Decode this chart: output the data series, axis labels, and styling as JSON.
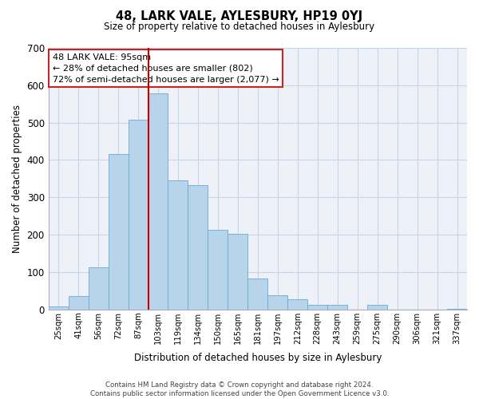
{
  "title": "48, LARK VALE, AYLESBURY, HP19 0YJ",
  "subtitle": "Size of property relative to detached houses in Aylesbury",
  "xlabel": "Distribution of detached houses by size in Aylesbury",
  "ylabel": "Number of detached properties",
  "bar_labels": [
    "25sqm",
    "41sqm",
    "56sqm",
    "72sqm",
    "87sqm",
    "103sqm",
    "119sqm",
    "134sqm",
    "150sqm",
    "165sqm",
    "181sqm",
    "197sqm",
    "212sqm",
    "228sqm",
    "243sqm",
    "259sqm",
    "275sqm",
    "290sqm",
    "306sqm",
    "321sqm",
    "337sqm"
  ],
  "bar_values": [
    8,
    35,
    112,
    415,
    507,
    578,
    345,
    332,
    213,
    202,
    83,
    37,
    27,
    12,
    13,
    0,
    13,
    0,
    0,
    0,
    2
  ],
  "bar_color": "#b8d4ea",
  "bar_edge_color": "#6aaad4",
  "marker_line_color": "#cc0000",
  "marker_bar_index": 5,
  "annotation_line1": "48 LARK VALE: 95sqm",
  "annotation_line2": "← 28% of detached houses are smaller (802)",
  "annotation_line3": "72% of semi-detached houses are larger (2,077) →",
  "annotation_box_color": "#ffffff",
  "annotation_box_edge": "#cc2222",
  "ylim": [
    0,
    700
  ],
  "yticks": [
    0,
    100,
    200,
    300,
    400,
    500,
    600,
    700
  ],
  "footer": "Contains HM Land Registry data © Crown copyright and database right 2024.\nContains public sector information licensed under the Open Government Licence v3.0.",
  "bg_color": "#ffffff",
  "plot_bg_color": "#eef2f8",
  "grid_color": "#c8d4e8"
}
